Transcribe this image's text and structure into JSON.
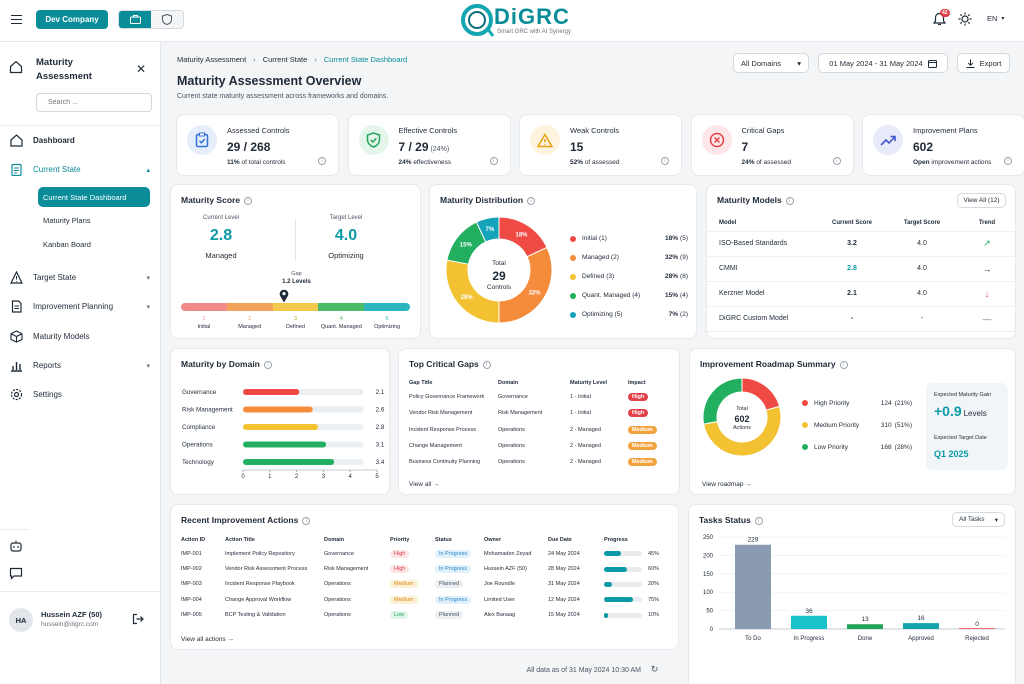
{
  "topbar": {
    "company": "Dev Company",
    "logo_text": "DiGRC",
    "logo_tagline": "Smart GRC with AI Synergy",
    "notification_count": "42",
    "language": "EN"
  },
  "sidebar": {
    "title": "Maturity Assessment",
    "search_placeholder": "Search ...",
    "items": [
      {
        "label": "Dashboard"
      },
      {
        "label": "Current State"
      },
      {
        "label": "Target State"
      },
      {
        "label": "Improvement Planning"
      },
      {
        "label": "Maturity Models"
      },
      {
        "label": "Reports"
      },
      {
        "label": "Settings"
      }
    ],
    "subitems": [
      {
        "label": "Current State Dashboard"
      },
      {
        "label": "Maturity Plans"
      },
      {
        "label": "Kanban Board"
      }
    ],
    "user": {
      "initials": "HA",
      "name": "Hussein AZF (50)",
      "email": "hussein@digrc.com"
    }
  },
  "breadcrumb": [
    "Maturity Assessment",
    "Current State",
    "Current State Dashboard"
  ],
  "header": {
    "title": "Maturity Assessment Overview",
    "subtitle": "Current state maturity assessment across frameworks and domains.",
    "domain_filter": "All Domains",
    "date_range": "01 May 2024 - 31 May 2024",
    "export_label": "Export"
  },
  "kpis": [
    {
      "label": "Assessed Controls",
      "value": "29 / 268",
      "value_extra": "",
      "note_bold": "11%",
      "note": " of total controls",
      "color": "#2f6fd6",
      "bg": "#e6eefb"
    },
    {
      "label": "Effective Controls",
      "value": "7 / 29",
      "value_extra": " (24%)",
      "note_bold": "24%",
      "note": " effectiveness",
      "color": "#22a55a",
      "bg": "#e4f6ea"
    },
    {
      "label": "Weak Controls",
      "value": "15",
      "value_extra": "",
      "note_bold": "52%",
      "note": " of assessed",
      "color": "#e6a219",
      "bg": "#fdf3de"
    },
    {
      "label": "Critical Gaps",
      "value": "7",
      "value_extra": "",
      "note_bold": "24%",
      "note": " of assessed",
      "color": "#e0424a",
      "bg": "#fde7e8"
    },
    {
      "label": "Improvement Plans",
      "value": "602",
      "value_extra": "",
      "note_bold": "Open",
      "note": " improvement actions",
      "color": "#4257c9",
      "bg": "#e8ebfa"
    }
  ],
  "maturity_score": {
    "title": "Maturity Score",
    "current_label": "Current Level",
    "current_value": "2.8",
    "current_name": "Managed",
    "target_label": "Target Level",
    "target_value": "4.0",
    "target_name": "Optimizing",
    "gap_label": "Gap",
    "gap_value": "1.2 Levels",
    "current_fraction": 0.45,
    "scale": [
      {
        "num": "1",
        "name": "Initial",
        "color": "#f08b88"
      },
      {
        "num": "2",
        "name": "Managed",
        "color": "#f4a35c"
      },
      {
        "num": "3",
        "name": "Defined",
        "color": "#f2c94c"
      },
      {
        "num": "4",
        "name": "Quant. Managed",
        "color": "#4cbb6a"
      },
      {
        "num": "5",
        "name": "Optimizing",
        "color": "#2cb5c0"
      }
    ]
  },
  "maturity_distribution": {
    "title": "Maturity Distribution",
    "total_label": "Total",
    "total_value": "29",
    "total_unit": "Controls",
    "chart_data": {
      "type": "pie",
      "categories": [
        "Initial (1)",
        "Managed (2)",
        "Defined (3)",
        "Quant. Managed (4)",
        "Optimizing (5)"
      ],
      "values": [
        18,
        32,
        28,
        15,
        7
      ],
      "pct_labels": [
        "18%",
        "32%",
        "28%",
        "15%",
        "7%"
      ],
      "counts": [
        "(5)",
        "(9)",
        "(8)",
        "(4)",
        "(2)"
      ],
      "colors": [
        "#ef4a44",
        "#f58c3b",
        "#f2c233",
        "#22b060",
        "#14a3b8"
      ]
    }
  },
  "maturity_models": {
    "title": "Maturity Models",
    "view_all": "View All (12)",
    "headers": [
      "Model",
      "Current Score",
      "Target Score",
      "Trend"
    ],
    "rows": [
      {
        "model": "ISO-Based Standards",
        "current": "3.2",
        "target": "4.0",
        "trend": "↗",
        "trend_color": "#22a55a"
      },
      {
        "model": "CMMI",
        "current": "2.8",
        "target": "4.0",
        "trend": "→",
        "trend_color": "#1f2a37"
      },
      {
        "model": "Kerzner Model",
        "current": "2.1",
        "target": "4.0",
        "trend": "↓",
        "trend_color": "#e0424a"
      },
      {
        "model": "DiGRC Custom Model",
        "current": "-",
        "target": "-",
        "trend": "—",
        "trend_color": "#6b7480"
      }
    ]
  },
  "by_domain": {
    "title": "Maturity by Domain",
    "chart_data": {
      "type": "bar",
      "categories": [
        "Governance",
        "Risk Management",
        "Compliance",
        "Operations",
        "Technology"
      ],
      "values": [
        2.1,
        2.6,
        2.8,
        3.1,
        3.4
      ],
      "value_labels": [
        "2.1",
        "2.6",
        "2.8",
        "3.1",
        "3.4"
      ],
      "colors": [
        "#ef4a44",
        "#f58c3b",
        "#f2c233",
        "#22b060",
        "#22b060"
      ],
      "xlim": [
        0,
        5
      ],
      "xticks": [
        "0",
        "1",
        "2",
        "3",
        "4",
        "5"
      ]
    }
  },
  "critical_gaps": {
    "title": "Top Critical Gaps",
    "headers": [
      "Gap Title",
      "Domain",
      "Maturity Level",
      "Impact"
    ],
    "rows": [
      {
        "gap": "Policy Governance Framework",
        "domain": "Governance",
        "level": "1 - Initial",
        "impact": "High"
      },
      {
        "gap": "Vendor Risk Management",
        "domain": "Risk Management",
        "level": "1 - Initial",
        "impact": "High"
      },
      {
        "gap": "Incident Response Process",
        "domain": "Operations",
        "level": "2 - Managed",
        "impact": "Medium"
      },
      {
        "gap": "Change Management",
        "domain": "Operations",
        "level": "2 - Managed",
        "impact": "Medium"
      },
      {
        "gap": "Business Continuity Planning",
        "domain": "Operations",
        "level": "2 - Managed",
        "impact": "Medium"
      }
    ],
    "view_all": "View all"
  },
  "roadmap": {
    "title": "Improvement Roadmap Summary",
    "total_label": "Total",
    "total_value": "602",
    "total_unit": "Actions",
    "chart_data": {
      "type": "pie",
      "categories": [
        "High Priority",
        "Medium Priority",
        "Low Priority"
      ],
      "values": [
        124,
        310,
        168
      ],
      "pcts": [
        "(21%)",
        "(51%)",
        "(28%)"
      ],
      "colors": [
        "#ef4a44",
        "#f2c233",
        "#22b060"
      ]
    },
    "gain_label": "Expected Maturity Gain",
    "gain_value": "+0.9",
    "gain_unit": "Levels",
    "target_date_label": "Expected Target Date",
    "target_date": "Q1 2025",
    "view_link": "View roadmap"
  },
  "actions": {
    "title": "Recent Improvement Actions",
    "headers": [
      "Action ID",
      "Action Title",
      "Domain",
      "Priority",
      "Status",
      "Owner",
      "Due Date",
      "Progress"
    ],
    "rows": [
      {
        "id": "IMP-001",
        "title": "Implement Policy Repository",
        "domain": "Governance",
        "priority": "High",
        "status": "In Progress",
        "owner": "Mohamaden Zeyad",
        "due": "24 May 2024",
        "progress": 45,
        "progress_label": "45%"
      },
      {
        "id": "IMP-002",
        "title": "Vendor Risk Assessment Process",
        "domain": "Risk Management",
        "priority": "High",
        "status": "In Progress",
        "owner": "Hussein AZF (50)",
        "due": "28 May 2024",
        "progress": 60,
        "progress_label": "60%"
      },
      {
        "id": "IMP-003",
        "title": "Incident Response Playbook",
        "domain": "Operations",
        "priority": "Medium",
        "status": "Planned",
        "owner": "Joe Roundle",
        "due": "31 May 2024",
        "progress": 20,
        "progress_label": "20%"
      },
      {
        "id": "IMP-004",
        "title": "Change Approval Workflow",
        "domain": "Operations",
        "priority": "Medium",
        "status": "In Progress",
        "owner": "Limited User",
        "due": "12 May 2024",
        "progress": 75,
        "progress_label": "75%"
      },
      {
        "id": "IMP-005",
        "title": "BCP Testing & Validation",
        "domain": "Operations",
        "priority": "Low",
        "status": "Planned",
        "owner": "Alex Banaag",
        "due": "15 May 2024",
        "progress": 10,
        "progress_label": "10%"
      }
    ],
    "view_all": "View all actions"
  },
  "tasks": {
    "title": "Tasks Status",
    "filter": "All Tasks",
    "chart_data": {
      "type": "bar",
      "categories": [
        "To Do",
        "In Progress",
        "Done",
        "Approved",
        "Rejected"
      ],
      "values": [
        229,
        36,
        13,
        16,
        0
      ],
      "value_labels": [
        "229",
        "36",
        "13",
        "16",
        "0"
      ],
      "colors": [
        "#8a9ab1",
        "#19c3c9",
        "#22a55a",
        "#12a4a8",
        "#ef4a44"
      ],
      "ylim": [
        0,
        250
      ],
      "yticks": [
        "0",
        "50",
        "100",
        "150",
        "200",
        "250"
      ]
    }
  },
  "footer": {
    "text": "All data as of 31 May 2024 10:30 AM"
  }
}
